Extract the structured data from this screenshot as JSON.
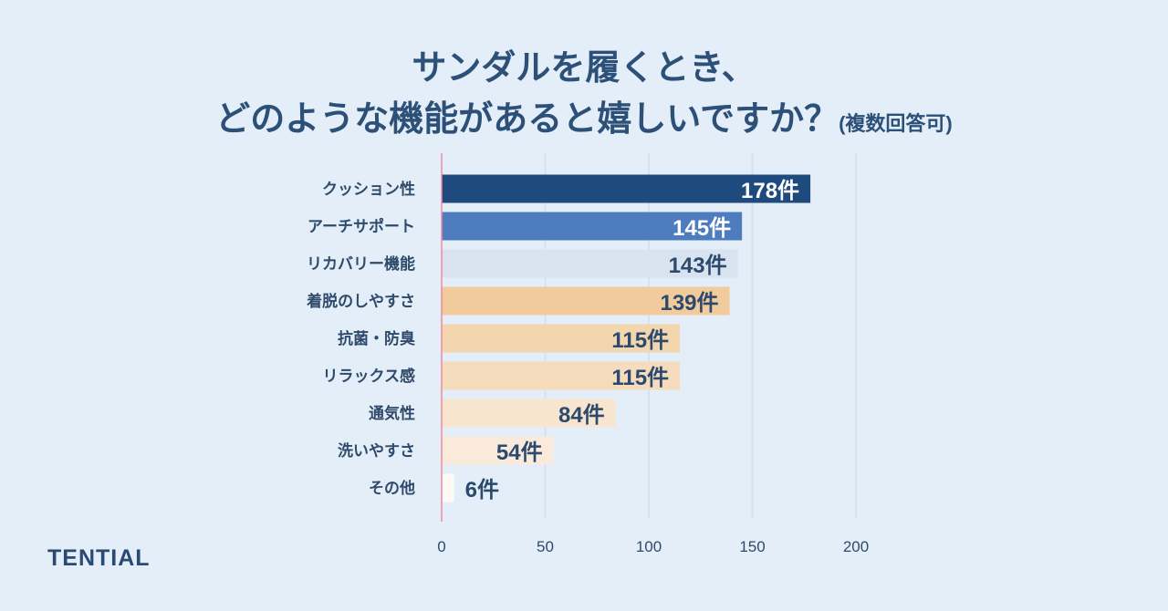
{
  "title_line1": "サンダルを履くとき、",
  "title_line2": "どのような機能があると嬉しいですか？",
  "title_note": "(複数回答可)",
  "brand": "TENTIAL",
  "chart_data": {
    "type": "bar",
    "orientation": "horizontal",
    "title": "サンダルを履くとき、どのような機能があると嬉しいですか？(複数回答可)",
    "categories": [
      "クッション性",
      "アーチサポート",
      "リカバリー機能",
      "着脱のしやすさ",
      "抗菌・防臭",
      "リラックス感",
      "通気性",
      "洗いやすさ",
      "その他"
    ],
    "values": [
      178,
      145,
      143,
      139,
      115,
      115,
      84,
      54,
      6
    ],
    "unit": "件",
    "colors": [
      "#1f4a7e",
      "#4d7dbf",
      "#d8e3ef",
      "#f1cb9c",
      "#f3d5ae",
      "#f5dcbd",
      "#f8e5cf",
      "#f9eadb",
      "#fdf9f3"
    ],
    "label_colors": [
      "#ffffff",
      "#ffffff",
      "#2c4a6e",
      "#2c4a6e",
      "#2c4a6e",
      "#2c4a6e",
      "#2c4a6e",
      "#2c4a6e",
      "#2c4a6e"
    ],
    "xlim": [
      0,
      200
    ],
    "xticks": [
      0,
      50,
      100,
      150,
      200
    ],
    "grid": true
  }
}
